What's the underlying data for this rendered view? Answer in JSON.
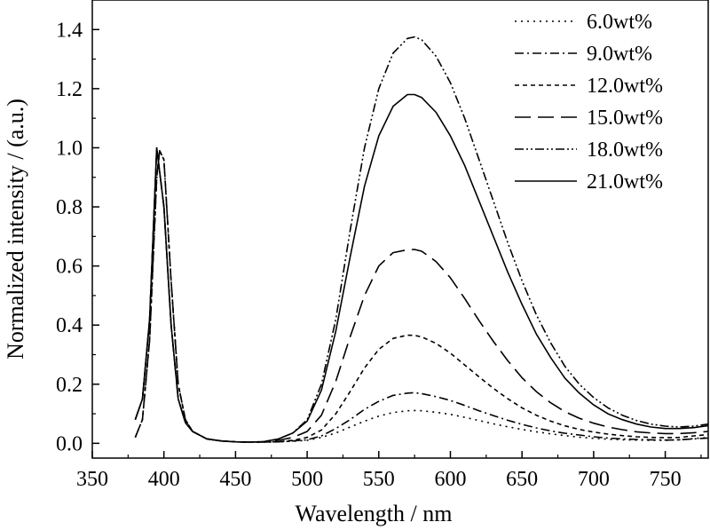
{
  "chart_data": {
    "type": "line",
    "xlabel": "Wavelength / nm",
    "ylabel": "Normalized intensity / (a.u.)",
    "xlim": [
      350,
      780
    ],
    "ylim": [
      -0.05,
      1.5
    ],
    "xticks": [
      "350",
      "400",
      "450",
      "500",
      "550",
      "600",
      "650",
      "700",
      "750"
    ],
    "yticks": [
      "0.0",
      "0.2",
      "0.4",
      "0.6",
      "0.8",
      "1.0",
      "1.2",
      "1.4"
    ],
    "grid": false,
    "legend_position": "top-right",
    "series": [
      {
        "name": "6.0wt%",
        "dash": "2,5",
        "x": [
          380,
          385,
          390,
          395,
          397,
          400,
          405,
          410,
          415,
          420,
          430,
          440,
          450,
          460,
          470,
          480,
          490,
          500,
          510,
          520,
          530,
          540,
          550,
          560,
          570,
          575,
          580,
          590,
          600,
          610,
          620,
          630,
          640,
          650,
          660,
          670,
          680,
          690,
          700,
          710,
          720,
          730,
          740,
          750,
          760,
          770,
          780
        ],
        "y": [
          0.02,
          0.08,
          0.35,
          0.9,
          0.99,
          0.96,
          0.55,
          0.2,
          0.08,
          0.04,
          0.015,
          0.008,
          0.005,
          0.004,
          0.004,
          0.005,
          0.007,
          0.01,
          0.02,
          0.035,
          0.055,
          0.075,
          0.092,
          0.104,
          0.11,
          0.111,
          0.11,
          0.105,
          0.098,
          0.088,
          0.077,
          0.066,
          0.056,
          0.047,
          0.039,
          0.032,
          0.026,
          0.021,
          0.017,
          0.014,
          0.012,
          0.011,
          0.01,
          0.01,
          0.012,
          0.016,
          0.02
        ]
      },
      {
        "name": "9.0wt%",
        "dash": "10,4,2,4",
        "x": [
          380,
          385,
          390,
          395,
          397,
          400,
          405,
          410,
          415,
          420,
          430,
          440,
          450,
          460,
          470,
          480,
          490,
          500,
          510,
          520,
          530,
          540,
          550,
          560,
          570,
          575,
          580,
          590,
          600,
          610,
          620,
          630,
          640,
          650,
          660,
          670,
          680,
          690,
          700,
          710,
          720,
          730,
          740,
          750,
          760,
          770,
          780
        ],
        "y": [
          0.02,
          0.08,
          0.35,
          0.9,
          0.99,
          0.96,
          0.55,
          0.2,
          0.08,
          0.04,
          0.015,
          0.008,
          0.005,
          0.004,
          0.004,
          0.005,
          0.008,
          0.012,
          0.025,
          0.05,
          0.08,
          0.115,
          0.142,
          0.162,
          0.17,
          0.171,
          0.168,
          0.158,
          0.145,
          0.128,
          0.11,
          0.094,
          0.078,
          0.064,
          0.052,
          0.042,
          0.034,
          0.028,
          0.022,
          0.018,
          0.015,
          0.013,
          0.012,
          0.011,
          0.012,
          0.015,
          0.018
        ]
      },
      {
        "name": "12.0wt%",
        "dash": "5,4",
        "x": [
          380,
          385,
          390,
          395,
          397,
          400,
          405,
          410,
          415,
          420,
          430,
          440,
          450,
          460,
          470,
          480,
          490,
          500,
          510,
          520,
          530,
          540,
          550,
          560,
          570,
          575,
          580,
          590,
          600,
          610,
          620,
          630,
          640,
          650,
          660,
          670,
          680,
          690,
          700,
          710,
          720,
          730,
          740,
          750,
          760,
          770,
          780
        ],
        "y": [
          0.02,
          0.08,
          0.35,
          0.9,
          0.99,
          0.96,
          0.55,
          0.2,
          0.08,
          0.04,
          0.015,
          0.008,
          0.005,
          0.004,
          0.004,
          0.006,
          0.01,
          0.02,
          0.045,
          0.1,
          0.175,
          0.255,
          0.318,
          0.355,
          0.366,
          0.365,
          0.36,
          0.338,
          0.305,
          0.265,
          0.225,
          0.186,
          0.151,
          0.12,
          0.095,
          0.075,
          0.059,
          0.047,
          0.038,
          0.031,
          0.026,
          0.022,
          0.02,
          0.019,
          0.02,
          0.025,
          0.03
        ]
      },
      {
        "name": "15.0wt%",
        "dash": "18,8",
        "x": [
          380,
          385,
          390,
          395,
          400,
          405,
          410,
          415,
          420,
          430,
          440,
          450,
          460,
          470,
          480,
          490,
          500,
          510,
          520,
          530,
          540,
          550,
          560,
          570,
          575,
          580,
          590,
          600,
          610,
          620,
          630,
          640,
          650,
          660,
          670,
          680,
          690,
          700,
          710,
          720,
          730,
          740,
          750,
          760,
          770,
          780
        ],
        "y": [
          0.08,
          0.15,
          0.42,
          1.0,
          0.8,
          0.4,
          0.15,
          0.07,
          0.04,
          0.015,
          0.008,
          0.005,
          0.004,
          0.005,
          0.01,
          0.02,
          0.04,
          0.095,
          0.21,
          0.36,
          0.5,
          0.6,
          0.645,
          0.655,
          0.656,
          0.65,
          0.615,
          0.56,
          0.49,
          0.415,
          0.345,
          0.28,
          0.222,
          0.175,
          0.137,
          0.107,
          0.085,
          0.068,
          0.055,
          0.046,
          0.039,
          0.035,
          0.033,
          0.033,
          0.036,
          0.04
        ]
      },
      {
        "name": "18.0wt%",
        "dash": "10,3,2,3,2,3",
        "x": [
          380,
          385,
          390,
          395,
          400,
          405,
          410,
          415,
          420,
          430,
          440,
          450,
          460,
          470,
          480,
          490,
          500,
          510,
          520,
          530,
          540,
          550,
          560,
          570,
          575,
          580,
          590,
          600,
          610,
          620,
          630,
          640,
          650,
          660,
          670,
          680,
          690,
          700,
          710,
          720,
          730,
          740,
          750,
          760,
          770,
          780
        ],
        "y": [
          0.08,
          0.15,
          0.42,
          1.0,
          0.8,
          0.4,
          0.15,
          0.07,
          0.04,
          0.015,
          0.008,
          0.005,
          0.004,
          0.006,
          0.015,
          0.035,
          0.08,
          0.2,
          0.42,
          0.72,
          1.0,
          1.2,
          1.32,
          1.37,
          1.375,
          1.365,
          1.31,
          1.22,
          1.1,
          0.96,
          0.82,
          0.68,
          0.55,
          0.435,
          0.34,
          0.26,
          0.2,
          0.155,
          0.12,
          0.095,
          0.077,
          0.065,
          0.058,
          0.055,
          0.058,
          0.065
        ]
      },
      {
        "name": "21.0wt%",
        "dash": "",
        "x": [
          380,
          385,
          390,
          395,
          400,
          405,
          410,
          415,
          420,
          430,
          440,
          450,
          460,
          470,
          480,
          490,
          500,
          510,
          520,
          530,
          540,
          550,
          560,
          570,
          575,
          580,
          590,
          600,
          610,
          620,
          630,
          640,
          650,
          660,
          670,
          680,
          690,
          700,
          710,
          720,
          730,
          740,
          750,
          760,
          770,
          780
        ],
        "y": [
          0.08,
          0.15,
          0.42,
          1.0,
          0.8,
          0.4,
          0.15,
          0.07,
          0.04,
          0.015,
          0.008,
          0.005,
          0.004,
          0.006,
          0.015,
          0.035,
          0.075,
          0.18,
          0.38,
          0.63,
          0.87,
          1.04,
          1.14,
          1.18,
          1.18,
          1.17,
          1.12,
          1.04,
          0.94,
          0.82,
          0.7,
          0.58,
          0.47,
          0.37,
          0.29,
          0.22,
          0.17,
          0.13,
          0.1,
          0.08,
          0.065,
          0.055,
          0.05,
          0.05,
          0.053,
          0.06
        ]
      }
    ]
  }
}
